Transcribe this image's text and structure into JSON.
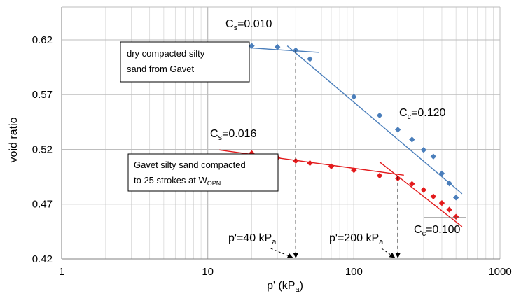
{
  "chart_data": {
    "type": "scatter",
    "x_scale": "log",
    "xlim": [
      1,
      1000
    ],
    "ylim": [
      0.42,
      0.65
    ],
    "grid": "on",
    "xlabel": "p' (kPa)",
    "ylabel": "void ratio",
    "x_ticks": [
      "1",
      "10",
      "100",
      "1000"
    ],
    "y_ticks": [
      "0.42",
      "0.47",
      "0.52",
      "0.57",
      "0.62"
    ],
    "series": [
      {
        "name": "dry compacted silty sand from Gavet",
        "color": "#4a7ebb",
        "marker": "diamond",
        "points": [
          [
            20,
            0.6145
          ],
          [
            30,
            0.6135
          ],
          [
            40,
            0.6105
          ],
          [
            50,
            0.6025
          ],
          [
            100,
            0.568
          ],
          [
            150,
            0.551
          ],
          [
            200,
            0.538
          ],
          [
            250,
            0.529
          ],
          [
            300,
            0.5195
          ],
          [
            350,
            0.5135
          ],
          [
            400,
            0.498
          ],
          [
            450,
            0.489
          ],
          [
            500,
            0.476
          ]
        ],
        "fit_lines": [
          {
            "from": [
              12,
              0.6145
            ],
            "to": [
              58,
              0.6085
            ]
          },
          {
            "from": [
              35,
              0.6145
            ],
            "to": [
              550,
              0.4795
            ]
          }
        ]
      },
      {
        "name": "Gavet silty sand compacted to 25 strokes at WOPN",
        "color": "#e31a1c",
        "marker": "diamond",
        "points": [
          [
            20,
            0.5165
          ],
          [
            30,
            0.5125
          ],
          [
            40,
            0.5095
          ],
          [
            50,
            0.5075
          ],
          [
            70,
            0.5045
          ],
          [
            100,
            0.501
          ],
          [
            150,
            0.496
          ],
          [
            200,
            0.4935
          ],
          [
            250,
            0.4885
          ],
          [
            300,
            0.483
          ],
          [
            350,
            0.477
          ],
          [
            400,
            0.471
          ],
          [
            450,
            0.465
          ],
          [
            500,
            0.4585
          ]
        ],
        "fit_lines": [
          {
            "from": [
              12,
              0.5195
            ],
            "to": [
              220,
              0.4965
            ]
          },
          {
            "from": [
              150,
              0.5085
            ],
            "to": [
              550,
              0.4495
            ]
          }
        ]
      }
    ],
    "annotations": {
      "cs_blue": {
        "base": "C",
        "sub": "s",
        "rest": "=0.010"
      },
      "cc_blue": {
        "base": "C",
        "sub": "c",
        "rest": "=0.120"
      },
      "cs_red": {
        "base": "C",
        "sub": "s",
        "rest": "=0.016"
      },
      "cc_red": {
        "base": "C",
        "sub": "c",
        "rest": "=0.100"
      },
      "p40": {
        "main": "p'=40 kP",
        "sub": "a"
      },
      "p200": {
        "main": "p'=200 kP",
        "sub": "a"
      },
      "box_blue": [
        "dry compacted silty",
        "sand from Gavet"
      ],
      "box_red": [
        "Gavet silty sand compacted",
        "to 25 strokes at W",
        "OPN"
      ]
    },
    "xlabel_parts": {
      "main": "p' (kP",
      "sub": "a",
      "end": ")"
    },
    "vertical_markers": [
      {
        "x": 40,
        "y_from": 0.6105,
        "label": "p40"
      },
      {
        "x": 200,
        "y_from": 0.4955,
        "label": "p200"
      }
    ]
  }
}
